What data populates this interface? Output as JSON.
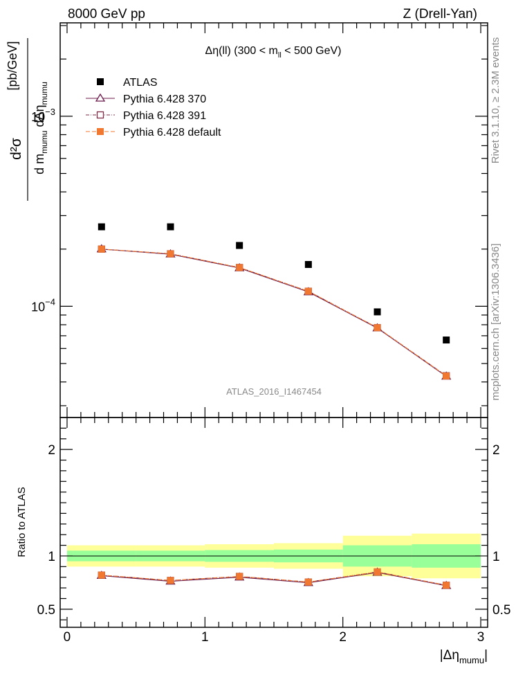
{
  "header": {
    "left": "8000 GeV pp",
    "right": "Z (Drell-Yan)"
  },
  "side_labels": {
    "rivet": "Rivet 3.1.10, ≥ 2.3M events",
    "mcplots": "mcplots.cern.ch [arXiv:1306.3436]"
  },
  "watermark": "ATLAS_2016_I1467454",
  "chart_data": [
    {
      "type": "scatter",
      "panel": "main",
      "title": "Δη(ll) (300 < m_ll < 500 GeV)",
      "title_parts": {
        "pre": "Δη(ll) (300 < m",
        "sub": "ll",
        "post": " < 500 GeV)"
      },
      "ylabel_parts": {
        "num": "d²σ",
        "den_a": "d m",
        "den_sub1": "mumu",
        "den_b": " dΔη",
        "den_sub2": "mumu",
        "unit": "[pb/GeV]"
      },
      "yscale": "log",
      "ylim": [
        2.6e-05,
        0.0031
      ],
      "xlim": [
        -0.05,
        3.05
      ],
      "y_tick_labels": [
        {
          "value": 0.0001,
          "base": "10",
          "exp": "−4"
        },
        {
          "value": 0.001,
          "base": "10",
          "exp": "−3"
        }
      ],
      "legend_position": "top-left",
      "x": [
        0.25,
        0.75,
        1.25,
        1.75,
        2.25,
        2.75
      ],
      "series": [
        {
          "name": "ATLAS",
          "color": "#000000",
          "marker": "square-filled",
          "values": [
            0.000262,
            0.000262,
            0.000209,
            0.000166,
            9.35e-05,
            6.65e-05
          ]
        },
        {
          "name": "Pythia 6.428 370",
          "color": "#6b1a4a",
          "marker": "triangle-open",
          "values": [
            0.0002,
            0.000188,
            0.000159,
            0.000119,
            7.68e-05,
            4.28e-05
          ]
        },
        {
          "name": "Pythia 6.428 391",
          "color": "#7a2a44",
          "marker": "square-open",
          "values": [
            0.0002,
            0.000189,
            0.00016,
            0.00012,
            7.72e-05,
            4.31e-05
          ]
        },
        {
          "name": "Pythia 6.428 default",
          "color": "#f07830",
          "marker": "square-filled",
          "values": [
            0.0002,
            0.000189,
            0.00016,
            0.00012,
            7.72e-05,
            4.3e-05
          ]
        }
      ]
    },
    {
      "type": "scatter",
      "panel": "ratio",
      "ylabel": "Ratio to ATLAS",
      "xlabel_parts": {
        "pre": "|Δη",
        "sub": "mumu",
        "post": "|"
      },
      "ylim": [
        0.33,
        2.3
      ],
      "xlim": [
        -0.05,
        3.05
      ],
      "y_ticks": [
        0.5,
        1,
        2
      ],
      "y_tick_labels": [
        "0.5",
        "1",
        "2"
      ],
      "x_ticks": [
        0,
        1,
        2,
        3
      ],
      "x_tick_labels": [
        "0",
        "1",
        "2",
        "3"
      ],
      "x": [
        0.25,
        0.75,
        1.25,
        1.75,
        2.25,
        2.75
      ],
      "bin_edges": [
        0,
        0.5,
        1,
        1.5,
        2,
        2.5,
        3
      ],
      "band_inner": [
        0.05,
        0.05,
        0.055,
        0.06,
        0.1,
        0.11
      ],
      "band_outer": [
        0.1,
        0.1,
        0.11,
        0.12,
        0.19,
        0.21
      ],
      "series": [
        {
          "name": "Pythia 6.428 370",
          "color": "#6b1a4a",
          "marker": "triangle-open",
          "values": [
            0.815,
            0.762,
            0.8,
            0.748,
            0.845,
            0.72
          ]
        },
        {
          "name": "Pythia 6.428 391",
          "color": "#7a2a44",
          "marker": "square-open",
          "values": [
            0.82,
            0.77,
            0.808,
            0.755,
            0.85,
            0.725
          ]
        },
        {
          "name": "Pythia 6.428 default",
          "color": "#f07830",
          "marker": "square-filled",
          "values": [
            0.82,
            0.77,
            0.808,
            0.755,
            0.85,
            0.725
          ]
        }
      ]
    }
  ]
}
